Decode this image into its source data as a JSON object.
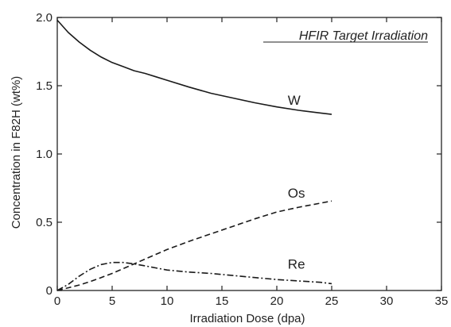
{
  "chart_data": {
    "type": "line",
    "title": "",
    "annotation": "HFIR Target Irradiation",
    "xlabel": "Irradiation Dose (dpa)",
    "ylabel": "Concentration in F82H (wt%)",
    "xlim": [
      0,
      35
    ],
    "ylim": [
      0,
      2.0
    ],
    "x_ticks": [
      0,
      5,
      10,
      15,
      20,
      25,
      30,
      35
    ],
    "y_ticks": [
      0,
      0.5,
      1.0,
      1.5,
      2.0
    ],
    "x_tick_labels": [
      "0",
      "5",
      "10",
      "15",
      "20",
      "25",
      "30",
      "35"
    ],
    "y_tick_labels": [
      "0",
      "0.5",
      "1.0",
      "1.5",
      "2.0"
    ],
    "grid": false,
    "series": [
      {
        "name": "W",
        "style": "solid",
        "x": [
          0,
          1,
          2,
          3,
          4,
          5,
          6,
          7,
          8,
          9,
          10,
          12,
          14,
          16,
          18,
          20,
          22,
          24,
          25
        ],
        "y": [
          1.98,
          1.89,
          1.82,
          1.76,
          1.71,
          1.67,
          1.64,
          1.61,
          1.59,
          1.565,
          1.54,
          1.49,
          1.445,
          1.41,
          1.375,
          1.345,
          1.32,
          1.3,
          1.29
        ]
      },
      {
        "name": "Os",
        "style": "dashed",
        "x": [
          0,
          1,
          2,
          3,
          4,
          5,
          6,
          7,
          8,
          9,
          10,
          12,
          14,
          16,
          18,
          20,
          22,
          24,
          25
        ],
        "y": [
          0.0,
          0.02,
          0.04,
          0.065,
          0.095,
          0.125,
          0.16,
          0.195,
          0.23,
          0.265,
          0.3,
          0.36,
          0.415,
          0.47,
          0.525,
          0.575,
          0.61,
          0.64,
          0.655
        ]
      },
      {
        "name": "Re",
        "style": "dashdot",
        "x": [
          0,
          1,
          2,
          3,
          4,
          5,
          6,
          7,
          8,
          9,
          10,
          12,
          14,
          16,
          18,
          20,
          22,
          24,
          25
        ],
        "y": [
          0.0,
          0.045,
          0.105,
          0.155,
          0.19,
          0.205,
          0.205,
          0.195,
          0.18,
          0.165,
          0.15,
          0.135,
          0.125,
          0.11,
          0.095,
          0.08,
          0.07,
          0.06,
          0.05
        ]
      }
    ],
    "series_label_positions": [
      {
        "name": "W",
        "x": 21.0,
        "y": 1.36
      },
      {
        "name": "Os",
        "x": 21.0,
        "y": 0.68
      },
      {
        "name": "Re",
        "x": 21.0,
        "y": 0.16
      }
    ]
  }
}
